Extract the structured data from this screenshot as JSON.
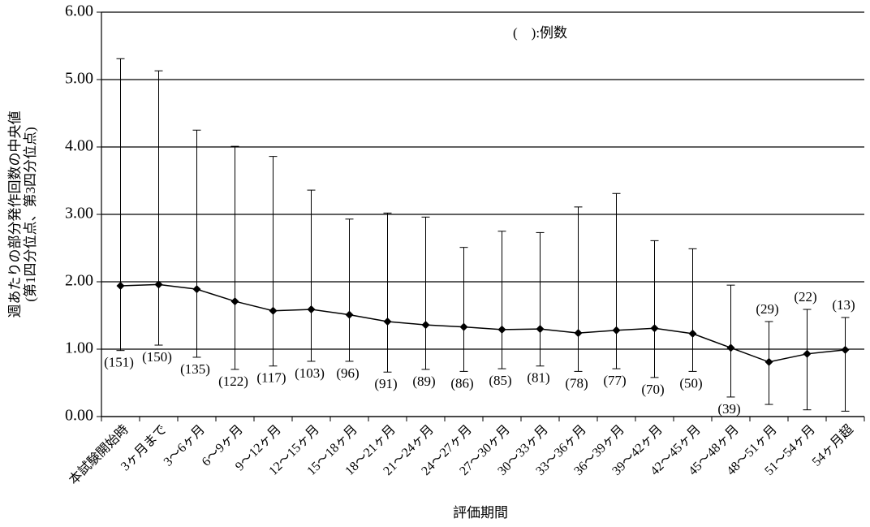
{
  "chart_data": {
    "type": "line_errorbar",
    "y_label": [
      "週あたりの部分発作回数の中央値",
      "(第1四分位点、第3四分位点)"
    ],
    "x_label": "評価期間",
    "legend_note": "(　):例数",
    "categories": [
      "本試験開始時",
      "3ヶ月まで",
      "3～6ヶ月",
      "6～9ヶ月",
      "9～12ヶ月",
      "12～15ヶ月",
      "15～18ヶ月",
      "18～21ヶ月",
      "21～24ヶ月",
      "24～27ヶ月",
      "27～30ヶ月",
      "30～33ヶ月",
      "33～36ヶ月",
      "36～39ヶ月",
      "39～42ヶ月",
      "42～45ヶ月",
      "45～48ヶ月",
      "48～51ヶ月",
      "51～54ヶ月",
      "54ヶ月超"
    ],
    "median": [
      1.94,
      1.96,
      1.89,
      1.71,
      1.57,
      1.59,
      1.51,
      1.41,
      1.36,
      1.33,
      1.29,
      1.3,
      1.24,
      1.28,
      1.31,
      1.23,
      1.02,
      0.81,
      0.93,
      0.99
    ],
    "q1": [
      0.98,
      1.06,
      0.88,
      0.7,
      0.75,
      0.82,
      0.82,
      0.66,
      0.7,
      0.67,
      0.71,
      0.75,
      0.67,
      0.71,
      0.58,
      0.67,
      0.29,
      0.18,
      0.1,
      0.08
    ],
    "q3": [
      5.31,
      5.13,
      4.25,
      4.01,
      3.86,
      3.36,
      2.93,
      3.02,
      2.96,
      2.51,
      2.75,
      2.73,
      3.11,
      3.31,
      2.61,
      2.49,
      1.95,
      1.41,
      1.59,
      1.47
    ],
    "count_labels": [
      "(151)",
      "(150)",
      "(135)",
      "(122)",
      "(117)",
      "(103)",
      "(96)",
      "(91)",
      "(89)",
      "(86)",
      "(85)",
      "(81)",
      "(78)",
      "(77)",
      "(70)",
      "(50)",
      "(39)",
      "(29)",
      "(22)",
      "(13)"
    ],
    "color": "#000000",
    "ylim": [
      0,
      6
    ],
    "yticks": [
      {
        "value": 0,
        "label": "0.00"
      },
      {
        "value": 1,
        "label": "1.00"
      },
      {
        "value": 2,
        "label": "2.00"
      },
      {
        "value": 3,
        "label": "3.00"
      },
      {
        "value": 4,
        "label": "4.00"
      },
      {
        "value": 5,
        "label": "5.00"
      },
      {
        "value": 6,
        "label": "6.00"
      }
    ],
    "grid": true
  }
}
